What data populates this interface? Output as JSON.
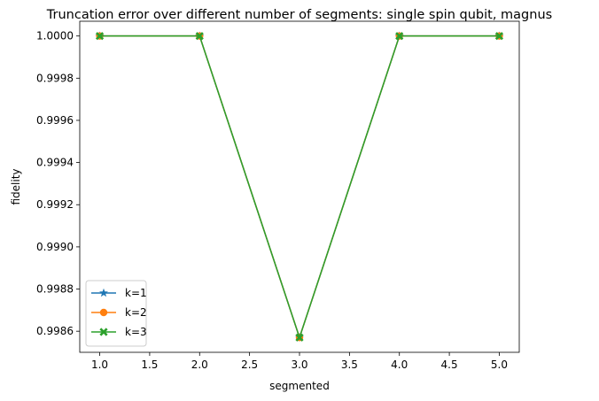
{
  "chart_data": {
    "type": "line",
    "title": "Truncation error over different number of segments: single spin qubit, magnus",
    "xlabel": "segmented",
    "ylabel": "fidelity",
    "x": [
      1.0,
      2.0,
      3.0,
      4.0,
      5.0
    ],
    "series": [
      {
        "name": "k=1",
        "values": [
          1.0,
          1.0,
          0.99857,
          1.0,
          1.0
        ],
        "color": "#1f77b4",
        "marker": "star"
      },
      {
        "name": "k=2",
        "values": [
          1.0,
          1.0,
          0.99857,
          1.0,
          1.0
        ],
        "color": "#ff7f0e",
        "marker": "circle"
      },
      {
        "name": "k=3",
        "values": [
          1.0,
          1.0,
          0.99857,
          1.0,
          1.0
        ],
        "color": "#2ca02c",
        "marker": "x"
      }
    ],
    "xlim": [
      0.8,
      5.2
    ],
    "ylim": [
      0.9985,
      1.00007
    ],
    "x_ticks": [
      "1.0",
      "1.5",
      "2.0",
      "2.5",
      "3.0",
      "3.5",
      "4.0",
      "4.5",
      "5.0"
    ],
    "x_tick_values": [
      1.0,
      1.5,
      2.0,
      2.5,
      3.0,
      3.5,
      4.0,
      4.5,
      5.0
    ],
    "y_ticks": [
      "0.9986",
      "0.9988",
      "0.9990",
      "0.9992",
      "0.9994",
      "0.9996",
      "0.9998",
      "1.0000"
    ],
    "y_tick_values": [
      0.9986,
      0.9988,
      0.999,
      0.9992,
      0.9994,
      0.9996,
      0.9998,
      1.0
    ],
    "grid": false,
    "legend_position": "lower-left"
  }
}
